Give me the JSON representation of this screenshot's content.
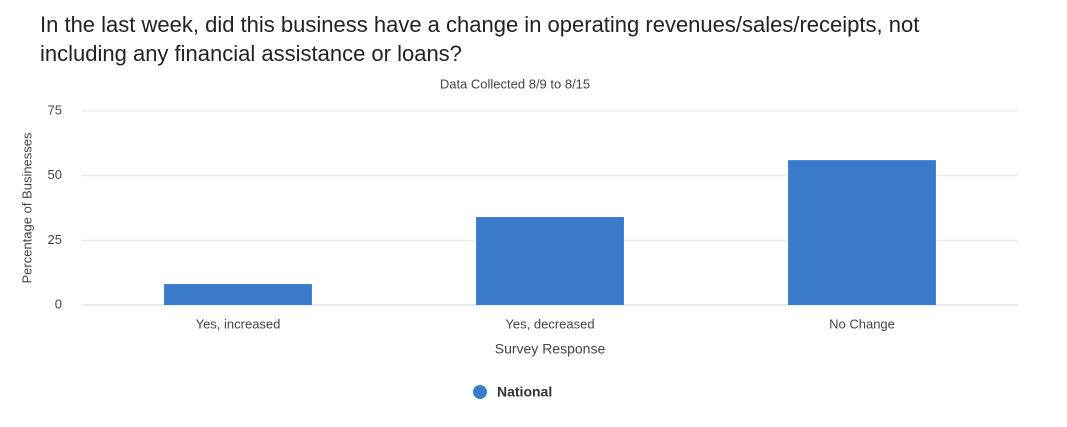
{
  "chart_data": {
    "type": "bar",
    "title": "In the last week, did this business have a change in operating revenues/sales/receipts, not including any financial assistance or loans?",
    "subtitle": "Data Collected 8/9 to 8/15",
    "x_label": "Survey Response",
    "y_label": "Percentage of Businesses",
    "categories": [
      "Yes, increased",
      "Yes, decreased",
      "No Change"
    ],
    "series": [
      {
        "name": "National",
        "color": "#3a7bcc",
        "values": [
          8.1,
          34,
          56
        ]
      }
    ],
    "ylim": [
      0,
      75
    ],
    "yticks": [
      0,
      25,
      50,
      75
    ],
    "grid": true
  }
}
